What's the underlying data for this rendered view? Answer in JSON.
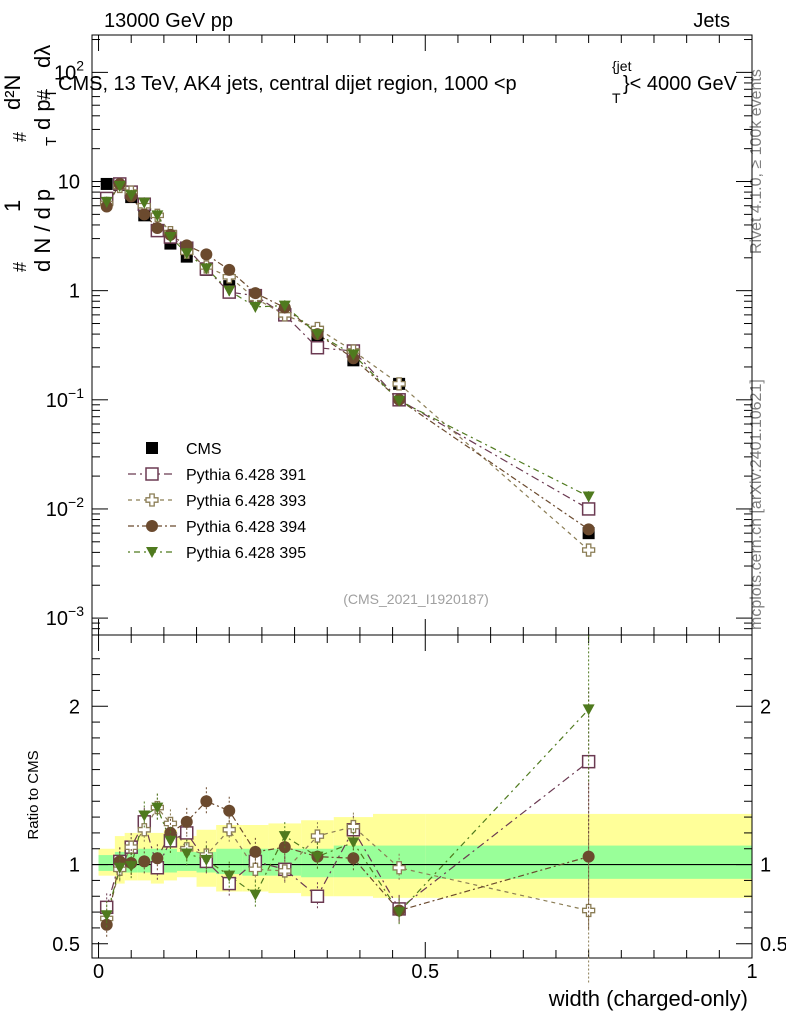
{
  "header": {
    "left": "13000 GeV pp",
    "right": "Jets"
  },
  "side": {
    "rivet": "Rivet 4.1.0, ≥ 100k events",
    "mcplots": "mcplots.cern.ch [arXiv:2401.10621]"
  },
  "colors": {
    "cms": "#000000",
    "p391": "#6b3a52",
    "p393": "#8b7d55",
    "p394": "#6b4a2e",
    "p395": "#4f7a1e",
    "band_green": "#99ff99",
    "band_yellow": "#ffff99"
  },
  "chart_data": [
    {
      "type": "scatter",
      "title": "CMS, 13 TeV, AK4 jets, central dijet region, 1000 <p_T^{jet}< 4000 GeV",
      "title_parts": {
        "main": "CMS, 13 TeV, AK4 jets, central dijet region, 1000 <p",
        "sup": "{jet",
        "sub": "T",
        "tail": "}< 4000 GeV"
      },
      "ylabel": "1/(dN/dp_T) d²N/(dp_T dλ)",
      "ylabel_parts": {
        "hash": "#",
        "one": "1",
        "den": "d N / d p",
        "sub": "T",
        "num": "d²N",
        "num2": "d p",
        "dl": "dλ"
      },
      "yscale": "log",
      "ylim": [
        0.0007,
        220
      ],
      "xlim": [
        -0.01,
        1.0
      ],
      "y_ticks": [
        {
          "value": 0.001,
          "base": "10",
          "exp": "−3"
        },
        {
          "value": 0.01,
          "base": "10",
          "exp": "−2"
        },
        {
          "value": 0.1,
          "base": "10",
          "exp": "−1"
        },
        {
          "value": 1,
          "base": "1",
          "exp": ""
        },
        {
          "value": 10,
          "base": "10",
          "exp": ""
        },
        {
          "value": 100,
          "base": "10",
          "exp": "2"
        }
      ],
      "watermark": "(CMS_2021_I1920187)",
      "x": [
        0.0125,
        0.0325,
        0.05,
        0.07,
        0.09,
        0.11,
        0.135,
        0.165,
        0.2,
        0.24,
        0.285,
        0.335,
        0.39,
        0.46,
        0.75
      ],
      "series": [
        {
          "name": "CMS",
          "key": "cms",
          "marker": "square-filled",
          "values": [
            9.5,
            9.3,
            7.2,
            4.9,
            3.6,
            2.7,
            2.05,
            1.55,
            1.1,
            0.88,
            0.62,
            0.38,
            0.23,
            0.14,
            0.006
          ]
        },
        {
          "name": "Pythia 6.428 391",
          "key": "p391",
          "marker": "square-open",
          "values": [
            7.0,
            9.5,
            8.0,
            6.2,
            3.55,
            3.1,
            2.45,
            1.58,
            0.97,
            0.9,
            0.6,
            0.3,
            0.28,
            0.1,
            0.01
          ]
        },
        {
          "name": "Pythia 6.428 393",
          "key": "p393",
          "marker": "cross-open",
          "values": [
            6.3,
            9.0,
            8.0,
            6.0,
            4.9,
            3.4,
            2.25,
            1.65,
            1.34,
            0.85,
            0.6,
            0.45,
            0.28,
            0.14,
            0.0042
          ]
        },
        {
          "name": "Pythia 6.428 394",
          "key": "p394",
          "marker": "circle-filled",
          "values": [
            5.9,
            9.5,
            7.3,
            5.0,
            3.75,
            3.25,
            2.6,
            2.15,
            1.55,
            0.95,
            0.7,
            0.4,
            0.24,
            0.1,
            0.0065
          ]
        },
        {
          "name": "Pythia 6.428 395",
          "key": "p395",
          "marker": "triangle-down",
          "values": [
            6.5,
            9.1,
            7.5,
            6.4,
            4.9,
            3.1,
            2.2,
            1.6,
            1.0,
            0.71,
            0.73,
            0.4,
            0.26,
            0.098,
            0.013
          ]
        }
      ]
    },
    {
      "type": "scatter",
      "ylabel": "Ratio to CMS",
      "xlabel": "width (charged-only)",
      "ylim": [
        0.41,
        2.45
      ],
      "xlim": [
        -0.01,
        1.0
      ],
      "y_ticks": [
        {
          "value": 0.5,
          "label": "0.5"
        },
        {
          "value": 1,
          "label": "1"
        },
        {
          "value": 2,
          "label": "2"
        }
      ],
      "x_ticks": [
        {
          "value": 0,
          "label": "0"
        },
        {
          "value": 0.5,
          "label": "0.5"
        },
        {
          "value": 1,
          "label": "1"
        }
      ],
      "band_edges": [
        0.0,
        0.025,
        0.04,
        0.06,
        0.08,
        0.1,
        0.12,
        0.15,
        0.18,
        0.22,
        0.26,
        0.31,
        0.36,
        0.42,
        0.5,
        1.0
      ],
      "band_green": [
        [
          0.96,
          1.06
        ],
        [
          0.95,
          1.08
        ],
        [
          0.95,
          1.1
        ],
        [
          0.95,
          1.1
        ],
        [
          0.94,
          1.1
        ],
        [
          0.95,
          1.1
        ],
        [
          0.96,
          1.08
        ],
        [
          0.95,
          1.08
        ],
        [
          0.94,
          1.1
        ],
        [
          0.93,
          1.1
        ],
        [
          0.93,
          1.1
        ],
        [
          0.92,
          1.1
        ],
        [
          0.92,
          1.12
        ],
        [
          0.91,
          1.12
        ],
        [
          0.91,
          1.12
        ]
      ],
      "band_yellow": [
        [
          0.93,
          1.1
        ],
        [
          0.88,
          1.18
        ],
        [
          0.9,
          1.2
        ],
        [
          0.9,
          1.2
        ],
        [
          0.88,
          1.2
        ],
        [
          0.9,
          1.22
        ],
        [
          0.92,
          1.18
        ],
        [
          0.86,
          1.22
        ],
        [
          0.83,
          1.25
        ],
        [
          0.83,
          1.25
        ],
        [
          0.82,
          1.26
        ],
        [
          0.8,
          1.28
        ],
        [
          0.8,
          1.3
        ],
        [
          0.79,
          1.32
        ],
        [
          0.79,
          1.32
        ]
      ],
      "x": [
        0.0125,
        0.0325,
        0.05,
        0.07,
        0.09,
        0.11,
        0.135,
        0.165,
        0.2,
        0.24,
        0.285,
        0.335,
        0.39,
        0.46,
        0.75
      ],
      "series": [
        {
          "name": "Pythia 6.428 391",
          "key": "p391",
          "marker": "square-open",
          "values": [
            0.73,
            1.02,
            1.11,
            1.27,
            0.98,
            1.15,
            1.2,
            1.02,
            0.88,
            1.02,
            0.97,
            0.8,
            1.22,
            0.72,
            1.65
          ]
        },
        {
          "name": "Pythia 6.428 393",
          "key": "p393",
          "marker": "cross-open",
          "values": [
            0.66,
            0.97,
            1.11,
            1.22,
            1.36,
            1.26,
            1.1,
            1.06,
            1.22,
            0.97,
            0.96,
            1.18,
            1.24,
            0.98,
            0.71
          ]
        },
        {
          "name": "Pythia 6.428 394",
          "key": "p394",
          "marker": "circle-filled",
          "values": [
            0.62,
            1.02,
            1.01,
            1.02,
            1.04,
            1.2,
            1.27,
            1.4,
            1.34,
            1.08,
            1.11,
            1.05,
            1.04,
            0.71,
            1.05
          ]
        },
        {
          "name": "Pythia 6.428 395",
          "key": "p395",
          "marker": "triangle-down",
          "values": [
            0.68,
            0.98,
            0.99,
            1.31,
            1.36,
            1.15,
            1.07,
            1.03,
            0.93,
            0.81,
            1.18,
            1.05,
            1.14,
            0.7,
            1.98
          ]
        }
      ]
    }
  ]
}
